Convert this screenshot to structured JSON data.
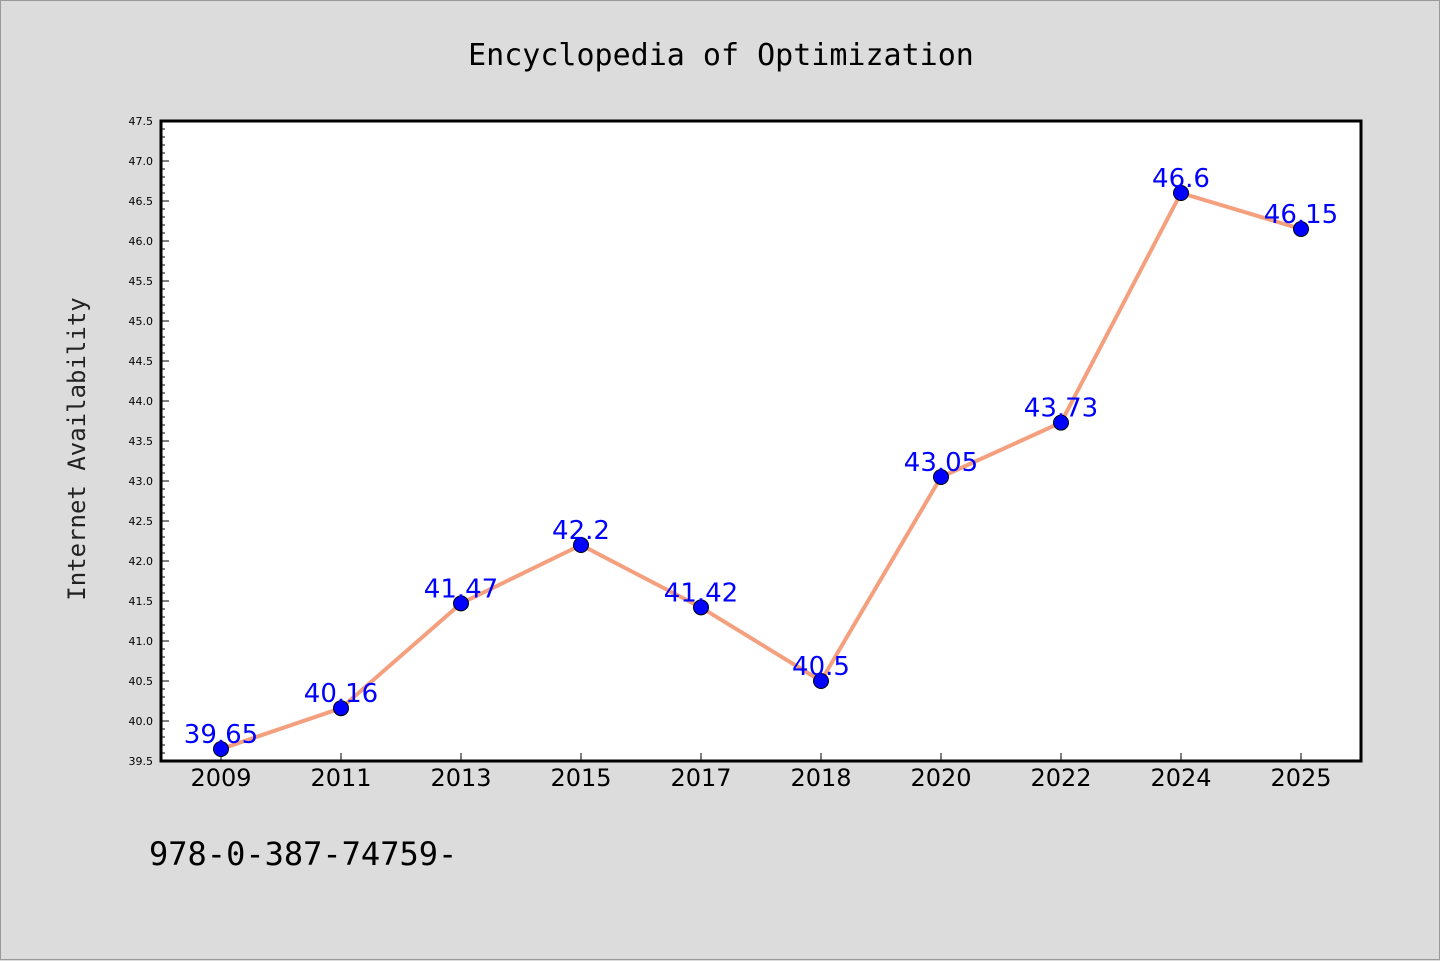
{
  "chart_data": {
    "type": "line",
    "title": "Encyclopedia of Optimization",
    "xlabel": "",
    "ylabel": "Internet Availability",
    "categories": [
      "2009",
      "2011",
      "2013",
      "2015",
      "2017",
      "2018",
      "2020",
      "2022",
      "2024",
      "2025"
    ],
    "values": [
      39.65,
      40.16,
      41.47,
      42.2,
      41.42,
      40.5,
      43.05,
      43.73,
      46.6,
      46.15
    ],
    "data_labels": [
      "39.65",
      "40.16",
      "41.47",
      "42.2",
      "41.42",
      "40.5",
      "43.05",
      "43.73",
      "46.6",
      "46.15"
    ],
    "ylim": [
      39.5,
      47.5
    ],
    "yticks": [
      "39.5",
      "40.0",
      "40.5",
      "41.0",
      "41.5",
      "42.0",
      "42.5",
      "43.0",
      "43.5",
      "44.0",
      "44.5",
      "45.0",
      "45.5",
      "46.0",
      "46.5",
      "47.0",
      "47.5"
    ],
    "grid": false,
    "line_color": "#f4a07e",
    "marker_color": "#0000ff",
    "label_color": "#0000ff",
    "plot_background": "#ffffff",
    "figure_background": "#dcdcdc"
  },
  "footer": {
    "text": "978-0-387-74759-"
  }
}
